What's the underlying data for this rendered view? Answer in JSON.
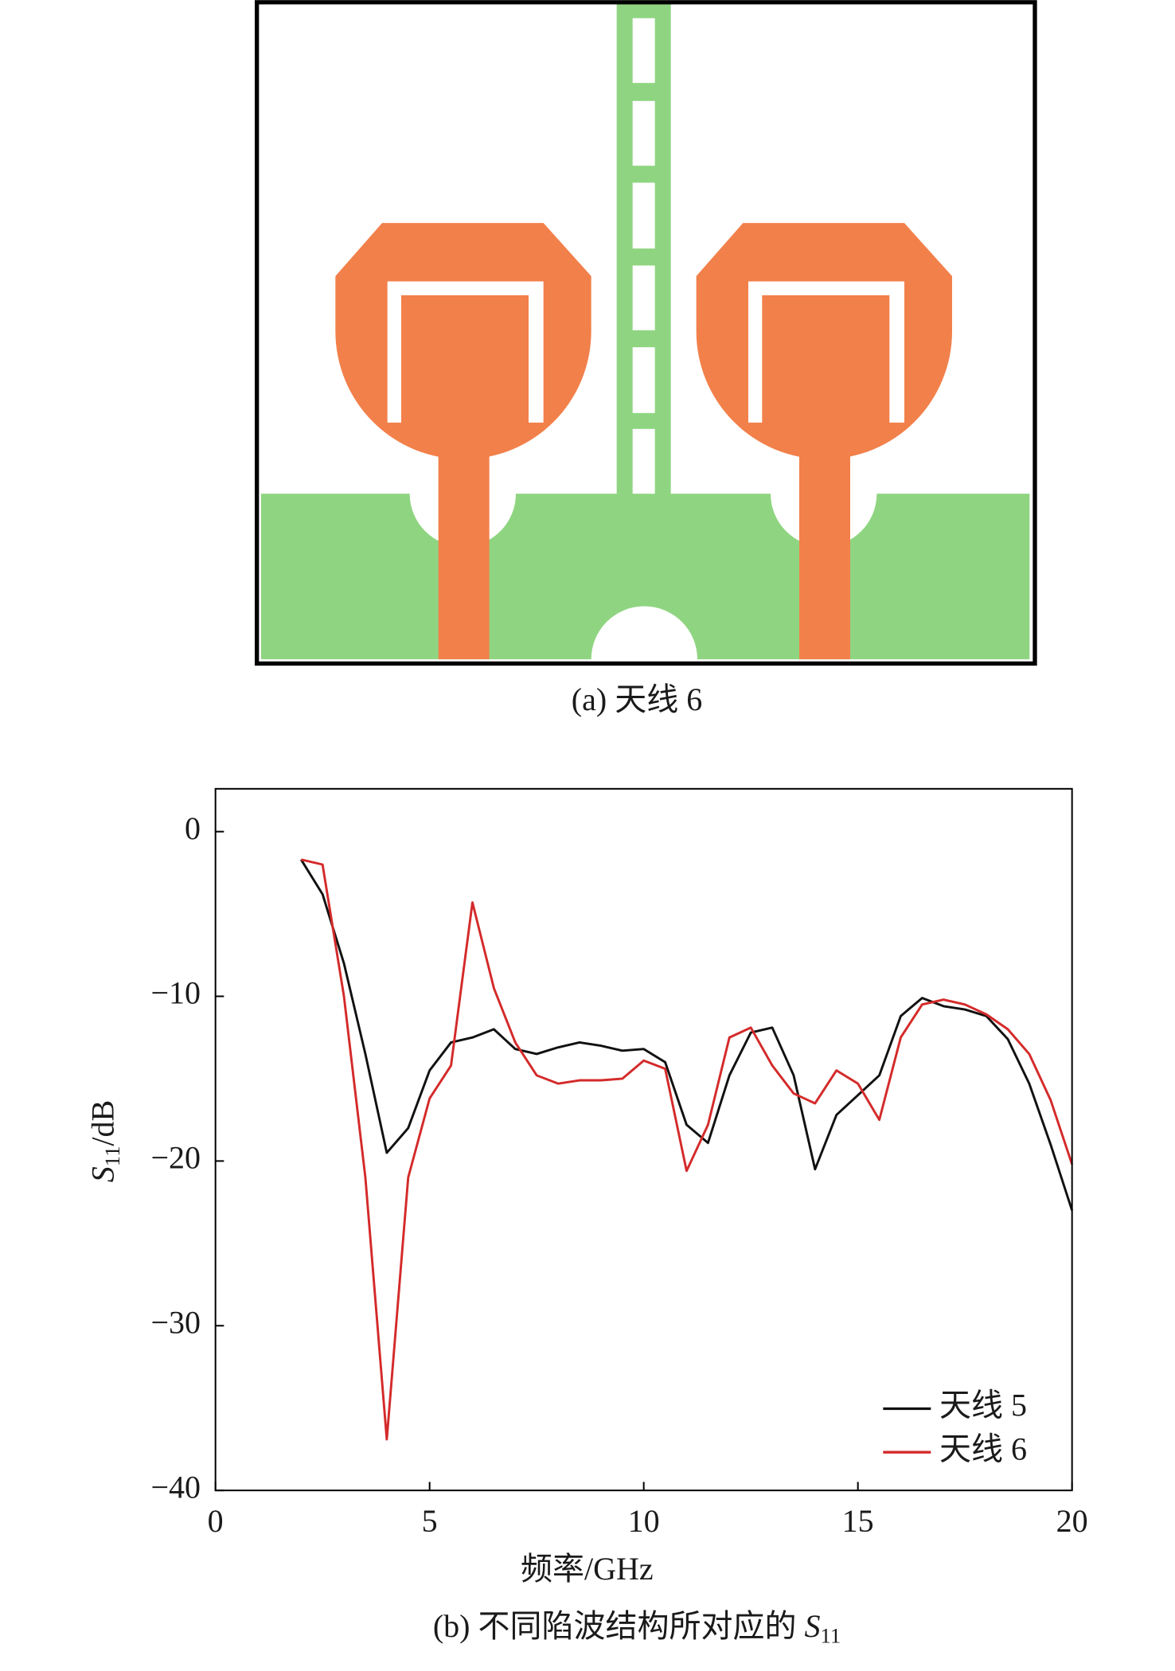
{
  "figure_a": {
    "caption": "(a) 天线 6"
  },
  "chart_data": {
    "type": "line",
    "x_label": "频率/GHz",
    "y_label": [
      "S",
      "11",
      "/dB"
    ],
    "caption": [
      "(b) 不同陷波结构所对应的 ",
      "S",
      "11"
    ],
    "xlim": [
      0,
      20
    ],
    "xticks": [
      0,
      5,
      10,
      15,
      20
    ],
    "ylim": [
      -40,
      2.6
    ],
    "yticks": [
      0,
      {
        "value": -10,
        "label": "−10"
      },
      {
        "value": -20,
        "label": "−20"
      },
      {
        "value": -30,
        "label": "−30"
      },
      {
        "value": -40,
        "label": "−40"
      }
    ],
    "legend": "lower right",
    "x": [
      2,
      2.5,
      3,
      3.5,
      4,
      4.5,
      5,
      5.5,
      6,
      6.5,
      7,
      7.5,
      8,
      8.5,
      9,
      9.5,
      10,
      10.5,
      11,
      11.5,
      12,
      12.5,
      13,
      13.5,
      14,
      14.5,
      15,
      15.5,
      16,
      16.5,
      17,
      17.5,
      18,
      18.5,
      19,
      19.5,
      20
    ],
    "series": [
      {
        "name": "天线 5",
        "color": "#111111",
        "values": [
          -1.7,
          -3.8,
          -8,
          -13.5,
          -19.5,
          -18,
          -14.5,
          -12.8,
          -12.5,
          -12,
          -13.2,
          -13.5,
          -13.1,
          -12.8,
          -13,
          -13.3,
          -13.2,
          -14,
          -17.8,
          -18.9,
          -14.8,
          -12.2,
          -11.9,
          -14.8,
          -20.5,
          -17.2,
          -16,
          -14.8,
          -11.2,
          -10.1,
          -10.6,
          -10.8,
          -11.2,
          -12.6,
          -15.3,
          -19,
          -23
        ]
      },
      {
        "name": "天线 6",
        "color": "#d42a2a",
        "values": [
          -1.7,
          -2,
          -10,
          -21,
          -36.9,
          -21,
          -16.2,
          -14.2,
          -4.3,
          -9.5,
          -12.8,
          -14.8,
          -15.3,
          -15.1,
          -15.1,
          -15,
          -13.9,
          -14.4,
          -20.6,
          -17.8,
          -12.5,
          -11.9,
          -14.2,
          -15.9,
          -16.5,
          -14.5,
          -15.3,
          -17.5,
          -12.5,
          -10.5,
          -10.2,
          -10.5,
          -11.1,
          -12,
          -13.5,
          -16.3,
          -20.2
        ]
      }
    ]
  }
}
